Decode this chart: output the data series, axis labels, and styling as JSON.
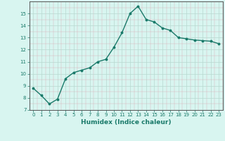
{
  "x": [
    0,
    1,
    2,
    3,
    4,
    5,
    6,
    7,
    8,
    9,
    10,
    11,
    12,
    13,
    14,
    15,
    16,
    17,
    18,
    19,
    20,
    21,
    22,
    23
  ],
  "y": [
    8.8,
    8.2,
    7.5,
    7.9,
    9.6,
    10.1,
    10.3,
    10.5,
    11.0,
    11.2,
    12.2,
    13.4,
    15.0,
    15.6,
    14.5,
    14.3,
    13.8,
    13.6,
    13.0,
    12.9,
    12.8,
    12.75,
    12.7,
    12.5
  ],
  "line_color": "#1a7a6a",
  "marker": "o",
  "marker_size": 1.8,
  "bg_color": "#d8f5f0",
  "grid_color": "#c8e8e0",
  "grid_major_color": "#b8d8d0",
  "xlabel": "Humidex (Indice chaleur)",
  "xlim": [
    -0.5,
    23.5
  ],
  "ylim": [
    7,
    16
  ],
  "yticks": [
    7,
    8,
    9,
    10,
    11,
    12,
    13,
    14,
    15
  ],
  "xticks": [
    0,
    1,
    2,
    3,
    4,
    5,
    6,
    7,
    8,
    9,
    10,
    11,
    12,
    13,
    14,
    15,
    16,
    17,
    18,
    19,
    20,
    21,
    22,
    23
  ],
  "tick_fontsize": 5.0,
  "label_fontsize": 6.5,
  "linewidth": 1.0,
  "spine_color": "#555555"
}
